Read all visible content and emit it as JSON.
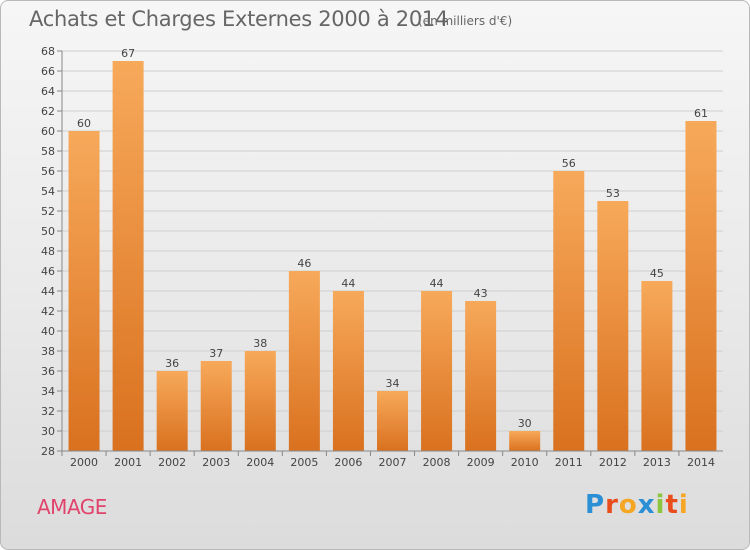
{
  "title": "Achats et Charges Externes 2000 à 2014",
  "subtitle": "(en milliers d'€)",
  "commune": "AMAGE",
  "logo": {
    "letters": [
      "P",
      "r",
      "o",
      "x",
      "i",
      "t",
      "i"
    ],
    "colors": [
      "#2b8fd6",
      "#e94d1c",
      "#f5a623",
      "#2b8fd6",
      "#8cc63f",
      "#e94d1c",
      "#f5a623"
    ]
  },
  "colors": {
    "bar_top": "#f7a95a",
    "bar_bottom": "#d9711f",
    "grid": "#cfcfcf",
    "axis_text": "#444444",
    "commune": "#e0436b"
  },
  "chart_data": {
    "type": "bar",
    "categories": [
      "2000",
      "2001",
      "2002",
      "2003",
      "2004",
      "2005",
      "2006",
      "2007",
      "2008",
      "2009",
      "2010",
      "2011",
      "2012",
      "2013",
      "2014"
    ],
    "values": [
      60,
      67,
      36,
      37,
      38,
      46,
      44,
      34,
      44,
      43,
      30,
      56,
      53,
      45,
      61
    ],
    "ylim": [
      28,
      68
    ],
    "yticks": [
      28,
      30,
      32,
      34,
      36,
      38,
      40,
      42,
      44,
      46,
      48,
      50,
      52,
      54,
      56,
      58,
      60,
      62,
      64,
      66,
      68
    ],
    "grid": true,
    "data_labels": true
  }
}
